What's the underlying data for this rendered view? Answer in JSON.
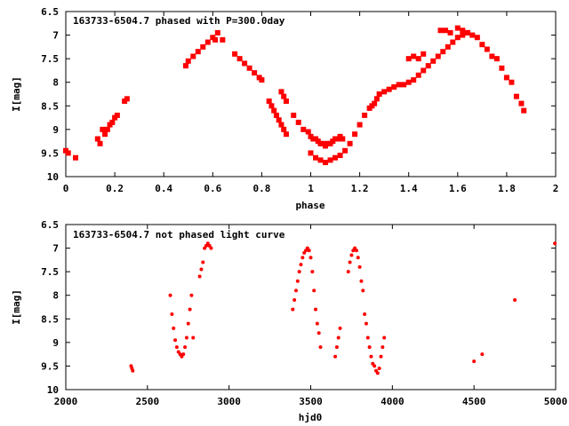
{
  "colors": {
    "series": "#ff0000",
    "axes": "#000000",
    "background": "#ffffff"
  },
  "chart_data": [
    {
      "type": "scatter",
      "title": "163733-6504.7 phased with P=300.0day",
      "xlabel": "phase",
      "ylabel": "I[mag]",
      "xlim": [
        0,
        2
      ],
      "ylim": [
        6.5,
        10
      ],
      "y_inverted": true,
      "grid": false,
      "xticks": [
        "0",
        "0.2",
        "0.4",
        "0.6",
        "0.8",
        "1",
        "1.2",
        "1.4",
        "1.6",
        "1.8",
        "2"
      ],
      "yticks": [
        "6.5",
        "7",
        "7.5",
        "8",
        "8.5",
        "9",
        "9.5",
        "10"
      ],
      "series": [
        {
          "x": [
            0.0,
            0.01,
            0.04,
            0.13,
            0.14,
            0.15,
            0.16,
            0.17,
            0.18,
            0.19,
            0.2,
            0.21,
            0.24,
            0.25,
            0.49,
            0.5,
            0.52,
            0.54,
            0.56,
            0.58,
            0.6,
            0.61,
            0.62,
            0.64,
            0.69,
            0.71,
            0.73,
            0.75,
            0.77,
            0.79,
            0.8,
            0.83,
            0.84,
            0.85,
            0.86,
            0.87,
            0.88,
            0.89,
            0.9,
            0.88,
            0.89,
            0.9,
            0.93,
            0.95,
            0.97,
            0.99,
            1.0,
            1.01,
            1.02,
            1.03,
            1.04,
            1.05,
            1.06,
            1.07,
            1.08,
            1.09,
            1.1,
            1.11,
            1.12,
            1.13,
            1.0,
            1.02,
            1.04,
            1.06,
            1.08,
            1.1,
            1.12,
            1.14,
            1.16,
            1.18,
            1.2,
            1.22,
            1.24,
            1.25,
            1.26,
            1.27,
            1.28,
            1.3,
            1.32,
            1.34,
            1.36,
            1.38,
            1.4,
            1.42,
            1.44,
            1.46,
            1.48,
            1.5,
            1.52,
            1.54,
            1.56,
            1.58,
            1.6,
            1.62,
            1.64,
            1.4,
            1.42,
            1.44,
            1.46,
            1.53,
            1.55,
            1.57,
            1.6,
            1.62,
            1.64,
            1.66,
            1.68,
            1.7,
            1.72,
            1.74,
            1.76,
            1.78,
            1.8,
            1.82,
            1.84,
            1.86,
            1.87
          ],
          "y": [
            9.45,
            9.5,
            9.6,
            9.2,
            9.3,
            9.0,
            9.1,
            9.0,
            8.9,
            8.85,
            8.75,
            8.7,
            8.4,
            8.35,
            7.65,
            7.55,
            7.45,
            7.35,
            7.25,
            7.15,
            7.05,
            7.1,
            6.95,
            7.1,
            7.4,
            7.5,
            7.6,
            7.7,
            7.8,
            7.9,
            7.95,
            8.4,
            8.5,
            8.6,
            8.7,
            8.8,
            8.9,
            9.0,
            9.1,
            8.2,
            8.3,
            8.4,
            8.7,
            8.85,
            9.0,
            9.05,
            9.15,
            9.2,
            9.2,
            9.25,
            9.3,
            9.3,
            9.35,
            9.3,
            9.3,
            9.25,
            9.2,
            9.2,
            9.15,
            9.2,
            9.5,
            9.6,
            9.65,
            9.7,
            9.65,
            9.6,
            9.55,
            9.45,
            9.3,
            9.1,
            8.9,
            8.7,
            8.55,
            8.5,
            8.45,
            8.35,
            8.25,
            8.2,
            8.15,
            8.1,
            8.05,
            8.05,
            8.0,
            7.95,
            7.85,
            7.75,
            7.65,
            7.55,
            7.45,
            7.35,
            7.25,
            7.15,
            7.05,
            7.0,
            6.95,
            7.5,
            7.45,
            7.5,
            7.4,
            6.9,
            6.9,
            6.95,
            6.85,
            6.9,
            6.95,
            7.0,
            7.05,
            7.2,
            7.3,
            7.45,
            7.5,
            7.7,
            7.9,
            8.0,
            8.3,
            8.45,
            8.6
          ]
        }
      ]
    },
    {
      "type": "scatter",
      "title": "163733-6504.7 not phased light curve",
      "xlabel": "hjd0",
      "ylabel": "I[mag]",
      "xlim": [
        2000,
        5000
      ],
      "ylim": [
        6.5,
        10
      ],
      "y_inverted": true,
      "grid": false,
      "xticks": [
        "2000",
        "2500",
        "3000",
        "3500",
        "4000",
        "4500",
        "5000"
      ],
      "yticks": [
        "6.5",
        "7",
        "7.5",
        "8",
        "8.5",
        "9",
        "9.5",
        "10"
      ],
      "series": [
        {
          "x": [
            2400,
            2405,
            2410,
            2640,
            2650,
            2660,
            2670,
            2680,
            2690,
            2700,
            2710,
            2720,
            2730,
            2740,
            2750,
            2760,
            2770,
            2780,
            2820,
            2830,
            2840,
            2850,
            2860,
            2870,
            2880,
            2890,
            3390,
            3400,
            3410,
            3420,
            3430,
            3440,
            3450,
            3460,
            3470,
            3480,
            3490,
            3500,
            3510,
            3520,
            3530,
            3540,
            3550,
            3560,
            3650,
            3660,
            3670,
            3680,
            3730,
            3740,
            3750,
            3760,
            3770,
            3780,
            3790,
            3800,
            3810,
            3820,
            3830,
            3840,
            3850,
            3860,
            3870,
            3880,
            3890,
            3900,
            3910,
            3920,
            3930,
            3940,
            3950,
            4500,
            4550,
            4750,
            4995
          ],
          "y": [
            9.5,
            9.55,
            9.6,
            8.0,
            8.4,
            8.7,
            8.95,
            9.1,
            9.2,
            9.25,
            9.3,
            9.25,
            9.1,
            8.9,
            8.6,
            8.3,
            8.0,
            8.9,
            7.6,
            7.45,
            7.3,
            7.0,
            6.95,
            6.9,
            6.95,
            7.0,
            8.3,
            8.1,
            7.9,
            7.7,
            7.5,
            7.35,
            7.2,
            7.1,
            7.05,
            7.0,
            7.05,
            7.2,
            7.5,
            7.9,
            8.3,
            8.6,
            8.8,
            9.1,
            9.3,
            9.1,
            8.9,
            8.7,
            7.5,
            7.3,
            7.15,
            7.05,
            7.0,
            7.05,
            7.2,
            7.4,
            7.7,
            7.9,
            8.4,
            8.6,
            8.9,
            9.1,
            9.3,
            9.45,
            9.5,
            9.6,
            9.65,
            9.55,
            9.3,
            9.1,
            8.9,
            9.4,
            9.25,
            8.1,
            6.9
          ]
        }
      ]
    }
  ]
}
